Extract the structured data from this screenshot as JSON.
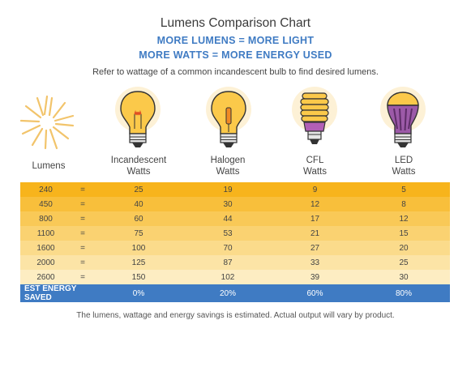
{
  "title": "Lumens Comparison Chart",
  "subtitle1": "MORE LUMENS = MORE LIGHT",
  "subtitle2": "MORE WATTS = MORE ENERGY USED",
  "note": "Refer to wattage of a common incandescent bulb to find desired lumens.",
  "footer": "The lumens, wattage and energy savings is estimated. Actual output will vary by product.",
  "icons": [
    "sunburst-icon",
    "incandescent-bulb-icon",
    "halogen-bulb-icon",
    "cfl-bulb-icon",
    "led-bulb-icon"
  ],
  "colors": {
    "accent_blue": "#3f7bc3",
    "row_colors": [
      "#f7b41c",
      "#f8bf3b",
      "#f9c957",
      "#fad271",
      "#fbdb8b",
      "#fce4a6",
      "#fdedc2"
    ]
  },
  "chart_data": {
    "type": "table",
    "title": "Lumens Comparison Chart",
    "headers": {
      "lumens": "Lumens",
      "incandescent": [
        "Incandescent",
        "Watts"
      ],
      "halogen": [
        "Halogen",
        "Watts"
      ],
      "cfl": [
        "CFL",
        "Watts"
      ],
      "led": [
        "LED",
        "Watts"
      ]
    },
    "rows": [
      {
        "lumens": "240",
        "eq": "=",
        "incandescent": "25",
        "halogen": "19",
        "cfl": "9",
        "led": "5"
      },
      {
        "lumens": "450",
        "eq": "=",
        "incandescent": "40",
        "halogen": "30",
        "cfl": "12",
        "led": "8"
      },
      {
        "lumens": "800",
        "eq": "=",
        "incandescent": "60",
        "halogen": "44",
        "cfl": "17",
        "led": "12"
      },
      {
        "lumens": "1100",
        "eq": "=",
        "incandescent": "75",
        "halogen": "53",
        "cfl": "21",
        "led": "15"
      },
      {
        "lumens": "1600",
        "eq": "=",
        "incandescent": "100",
        "halogen": "70",
        "cfl": "27",
        "led": "20"
      },
      {
        "lumens": "2000",
        "eq": "=",
        "incandescent": "125",
        "halogen": "87",
        "cfl": "33",
        "led": "25"
      },
      {
        "lumens": "2600",
        "eq": "=",
        "incandescent": "150",
        "halogen": "102",
        "cfl": "39",
        "led": "30"
      }
    ],
    "total_row": {
      "label": "EST ENERGY SAVED",
      "incandescent": "0%",
      "halogen": "20%",
      "cfl": "60%",
      "led": "80%"
    }
  }
}
